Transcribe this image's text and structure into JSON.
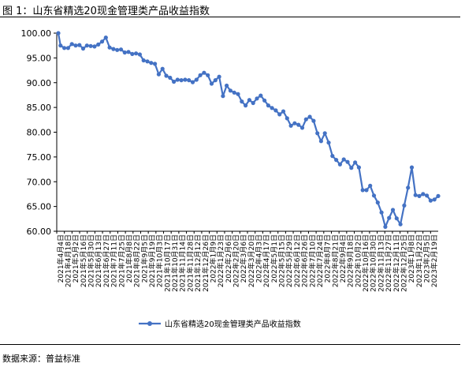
{
  "figure": {
    "title": "图 1：山东省精选20现金管理类产品收益指数",
    "source": "数据来源：普益标准"
  },
  "colors": {
    "series": "#4472C4",
    "axis": "#000000",
    "rule": "#000000"
  },
  "chart_data": {
    "type": "line",
    "title": "",
    "xlabel": "",
    "ylabel": "",
    "ylim": [
      60,
      100
    ],
    "yticks": [
      "60.00",
      "65.00",
      "70.00",
      "75.00",
      "80.00",
      "85.00",
      "90.00",
      "95.00",
      "100.00"
    ],
    "grid": false,
    "legend_position": "bottom",
    "x_tick_labels": [
      "2021年4月4日",
      "2021年4月18日",
      "2021年5月2日",
      "2021年5月16日",
      "2021年5月30日",
      "2021年6月13日",
      "2021年6月27日",
      "2021年7月11日",
      "2021年7月25日",
      "2021年8月8日",
      "2021年8月22日",
      "2021年9月5日",
      "2021年9月19日",
      "2021年10月3日",
      "2021年10月17日",
      "2021年10月31日",
      "2021年11月14日",
      "2021年11月28日",
      "2021年12月12日",
      "2021年12月26日",
      "2022年1月9日",
      "2022年1月23日",
      "2022年2月6日",
      "2022年2月20日",
      "2022年3月6日",
      "2022年3月20日",
      "2022年4月3日",
      "2022年4月17日",
      "2022年5月1日",
      "2022年5月15日",
      "2022年5月29日",
      "2022年6月12日",
      "2022年6月26日",
      "2022年7月10日",
      "2022年7月24日",
      "2022年8月7日",
      "2022年8月21日",
      "2022年9月4日",
      "2022年9月18日",
      "2022年10月2日",
      "2022年10月16日",
      "2022年10月30日",
      "2022年11月13日",
      "2022年11月27日",
      "2022年12月11日",
      "2022年12月25日",
      "2023年1月8日",
      "2023年1月22日",
      "2023年2月5日",
      "2023年2月19日"
    ],
    "series": [
      {
        "name": "山东省精选20现金管理类产品收益指数",
        "values": [
          100.0,
          97.5,
          97.0,
          97.0,
          97.8,
          97.5,
          97.6,
          96.9,
          97.5,
          97.4,
          97.3,
          97.7,
          98.3,
          99.1,
          97.1,
          96.8,
          96.6,
          96.7,
          96.1,
          96.2,
          95.8,
          95.9,
          95.7,
          94.5,
          94.3,
          94.0,
          93.8,
          91.7,
          92.8,
          91.4,
          91.0,
          90.2,
          90.6,
          90.5,
          90.6,
          90.5,
          90.1,
          90.6,
          91.5,
          92.0,
          91.5,
          89.8,
          90.5,
          91.2,
          87.3,
          89.4,
          88.4,
          88.0,
          87.7,
          86.2,
          85.4,
          86.5,
          85.9,
          86.8,
          87.4,
          86.4,
          85.4,
          84.9,
          84.4,
          83.6,
          84.2,
          82.8,
          81.3,
          81.8,
          81.5,
          80.9,
          82.6,
          83.1,
          82.3,
          79.8,
          78.2,
          79.8,
          77.9,
          75.2,
          74.4,
          73.5,
          74.5,
          74.0,
          72.8,
          73.9,
          72.9,
          68.3,
          68.3,
          69.2,
          67.2,
          65.8,
          63.8,
          60.9,
          62.7,
          64.3,
          62.6,
          61.4,
          65.2,
          68.8,
          72.9,
          67.3,
          67.1,
          67.5,
          67.2,
          66.2,
          66.4,
          67.1
        ]
      }
    ]
  }
}
